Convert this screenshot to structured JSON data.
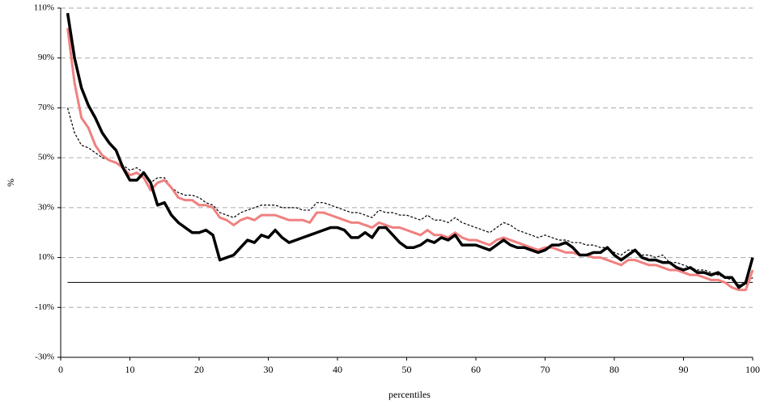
{
  "chart_data": {
    "type": "line",
    "xlabel": "percentiles",
    "ylabel": "%",
    "x": [
      1,
      2,
      3,
      4,
      5,
      6,
      7,
      8,
      9,
      10,
      11,
      12,
      13,
      14,
      15,
      16,
      17,
      18,
      19,
      20,
      21,
      22,
      23,
      24,
      25,
      26,
      27,
      28,
      29,
      30,
      31,
      32,
      33,
      34,
      35,
      36,
      37,
      38,
      39,
      40,
      41,
      42,
      43,
      44,
      45,
      46,
      47,
      48,
      49,
      50,
      51,
      52,
      53,
      54,
      55,
      56,
      57,
      58,
      59,
      60,
      61,
      62,
      63,
      64,
      65,
      66,
      67,
      68,
      69,
      70,
      71,
      72,
      73,
      74,
      75,
      76,
      77,
      78,
      79,
      80,
      81,
      82,
      83,
      84,
      85,
      86,
      87,
      88,
      89,
      90,
      91,
      92,
      93,
      94,
      95,
      96,
      97,
      98,
      99,
      100
    ],
    "series": [
      {
        "color": "#000000",
        "line_style": "dotted",
        "line_width": 1.2,
        "values": [
          70,
          60,
          55,
          54,
          52,
          50,
          49,
          48,
          47,
          45,
          46,
          44,
          40,
          42,
          42,
          38,
          36,
          35,
          35,
          34,
          32,
          31,
          28,
          27,
          26,
          28,
          29,
          30,
          31,
          31,
          31,
          30,
          30,
          30,
          29,
          29,
          32,
          32,
          31,
          30,
          29,
          28,
          28,
          27,
          26,
          29,
          28,
          28,
          27,
          27,
          26,
          25,
          27,
          25,
          25,
          24,
          26,
          24,
          23,
          22,
          21,
          20,
          22,
          24,
          23,
          21,
          20,
          19,
          18,
          19,
          18,
          17,
          17,
          16,
          16,
          15,
          15,
          14,
          14,
          12,
          11,
          13,
          13,
          11,
          11,
          10,
          11,
          8,
          8,
          7,
          6,
          5,
          5,
          4,
          3,
          2,
          1,
          -1,
          -1,
          2
        ]
      },
      {
        "color": "#f08080",
        "line_style": "solid",
        "line_width": 3,
        "values": [
          102,
          80,
          66,
          62,
          55,
          51,
          49,
          48,
          46,
          43,
          44,
          42,
          37,
          40,
          41,
          38,
          34,
          33,
          33,
          31,
          31,
          30,
          26,
          25,
          23,
          25,
          26,
          25,
          27,
          27,
          27,
          26,
          25,
          25,
          25,
          24,
          28,
          28,
          27,
          26,
          25,
          24,
          24,
          23,
          22,
          24,
          23,
          22,
          22,
          21,
          20,
          19,
          21,
          19,
          19,
          18,
          20,
          18,
          17,
          17,
          16,
          15,
          17,
          18,
          17,
          16,
          15,
          14,
          13,
          14,
          14,
          13,
          12,
          12,
          11,
          11,
          10,
          10,
          9,
          8,
          7,
          9,
          9,
          8,
          7,
          7,
          6,
          5,
          5,
          4,
          3,
          3,
          2,
          1,
          1,
          0,
          -2,
          -3,
          -3,
          5
        ]
      },
      {
        "color": "#000000",
        "line_style": "solid",
        "line_width": 3.5,
        "values": [
          108,
          90,
          78,
          71,
          66,
          60,
          56,
          53,
          46,
          41,
          41,
          44,
          40,
          31,
          32,
          27,
          24,
          22,
          20,
          20,
          21,
          19,
          9,
          10,
          11,
          14,
          17,
          16,
          19,
          18,
          21,
          18,
          16,
          17,
          18,
          19,
          20,
          21,
          22,
          22,
          21,
          18,
          18,
          20,
          18,
          22,
          22,
          19,
          16,
          14,
          14,
          15,
          17,
          16,
          18,
          17,
          19,
          15,
          15,
          15,
          14,
          13,
          15,
          17,
          15,
          14,
          14,
          13,
          12,
          13,
          15,
          15,
          16,
          14,
          11,
          11,
          12,
          12,
          14,
          11,
          9,
          11,
          13,
          10,
          9,
          9,
          8,
          8,
          6,
          5,
          6,
          4,
          4,
          3,
          4,
          2,
          2,
          -2,
          0,
          10
        ]
      }
    ],
    "xlim": [
      0,
      100
    ],
    "xticks": [
      0,
      10,
      20,
      30,
      40,
      50,
      60,
      70,
      80,
      90,
      100
    ],
    "ylim": [
      -30,
      110
    ],
    "yticks": [
      {
        "value": -30,
        "label": "-30%"
      },
      {
        "value": -10,
        "label": "-10%"
      },
      {
        "value": 10,
        "label": "10%"
      },
      {
        "value": 30,
        "label": "30%"
      },
      {
        "value": 50,
        "label": "50%"
      },
      {
        "value": 70,
        "label": "70%"
      },
      {
        "value": 90,
        "label": "90%"
      },
      {
        "value": 110,
        "label": "110%"
      }
    ],
    "grid": true
  }
}
